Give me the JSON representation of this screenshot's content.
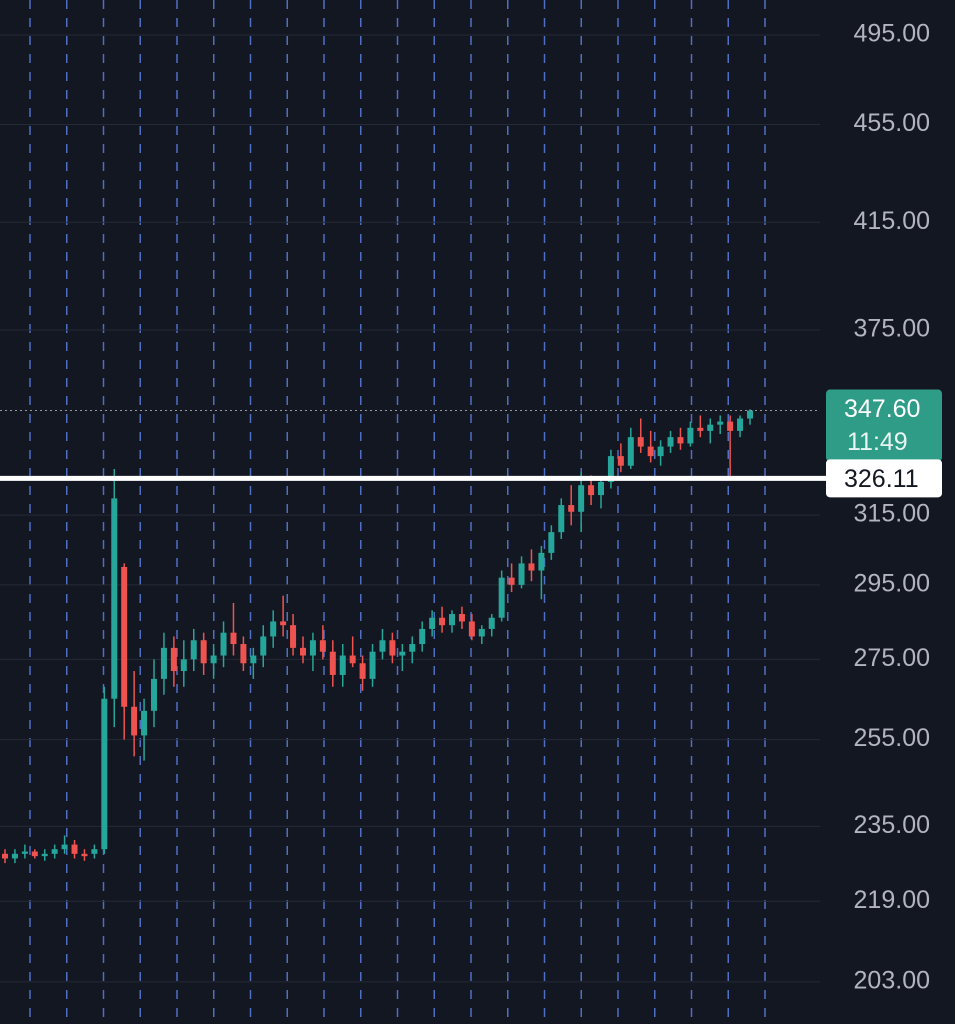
{
  "chart_data": {
    "type": "candlestick",
    "categories": [
      null,
      null,
      null,
      null,
      null,
      null,
      null,
      null,
      null,
      null,
      null,
      null,
      null,
      null,
      null,
      null,
      null,
      null,
      null,
      null,
      null,
      null,
      null,
      null,
      null,
      null,
      null,
      null,
      null,
      null,
      null,
      null,
      null,
      null,
      null,
      null,
      null,
      null,
      null,
      null,
      null,
      null,
      null,
      null,
      null,
      null,
      null,
      null,
      null,
      null,
      null,
      null,
      null,
      null,
      null,
      null,
      null,
      null,
      null,
      null,
      null,
      null,
      null,
      null,
      null,
      null,
      null,
      null,
      null,
      null,
      null,
      null,
      null,
      null,
      null,
      null
    ],
    "open": [
      229,
      228,
      229,
      229.5,
      228.5,
      229,
      230,
      231,
      229,
      229,
      230,
      265,
      300,
      263,
      256,
      262,
      270,
      278,
      272,
      275,
      280,
      274,
      276,
      282,
      279,
      274,
      276,
      281,
      285,
      284,
      278,
      276,
      280,
      277,
      271,
      276,
      274,
      270,
      277,
      280,
      276,
      277,
      279,
      283,
      286,
      284,
      287,
      285,
      281,
      283,
      286,
      297,
      295,
      301,
      299,
      304,
      310,
      318,
      316,
      324,
      321,
      325,
      333,
      330,
      339,
      336,
      333,
      336,
      339,
      337,
      342,
      341,
      343,
      344,
      341,
      345
    ],
    "high": [
      230,
      230,
      231,
      230,
      230,
      231,
      233,
      232,
      230,
      231,
      268,
      329,
      301,
      272,
      265,
      275,
      282,
      281,
      280,
      283,
      282,
      279,
      285,
      290,
      281,
      278,
      284,
      288,
      292,
      287,
      281,
      282,
      284,
      280,
      279,
      281,
      276,
      279,
      283,
      282,
      279,
      281,
      285,
      288,
      289,
      288,
      289,
      287,
      284,
      287,
      299,
      301,
      303,
      305,
      306,
      312,
      320,
      324,
      328,
      327,
      326,
      335,
      337,
      342,
      345,
      341,
      338,
      341,
      342,
      344,
      346,
      345,
      346,
      346,
      346,
      348
    ],
    "low": [
      227,
      227,
      228,
      228,
      227.5,
      228,
      229,
      228,
      227.5,
      228,
      229,
      258,
      255,
      251,
      250,
      258,
      266,
      268,
      268,
      272,
      271,
      270,
      273,
      276,
      272,
      270,
      273,
      278,
      281,
      276,
      274,
      272,
      275,
      268,
      268,
      273,
      267,
      268,
      275,
      274,
      272,
      274,
      277,
      281,
      282,
      282,
      283,
      280,
      279,
      281,
      285,
      293,
      294,
      296,
      291,
      302,
      308,
      312,
      310,
      318,
      317,
      323,
      328,
      329,
      334,
      331,
      330,
      334,
      335,
      336,
      339,
      337,
      340,
      326,
      339,
      343
    ],
    "close": [
      228,
      229,
      229.5,
      228.5,
      229,
      230,
      231,
      229,
      228.5,
      230,
      265,
      320,
      263,
      256,
      262,
      270,
      278,
      272,
      275,
      280,
      274,
      276,
      282,
      279,
      274,
      276,
      281,
      285,
      284,
      278,
      276,
      280,
      277,
      271,
      276,
      274,
      270,
      277,
      280,
      276,
      277,
      279,
      283,
      286,
      284,
      287,
      285,
      281,
      283,
      286,
      297,
      295,
      301,
      299,
      304,
      310,
      318,
      316,
      324,
      321,
      325,
      333,
      330,
      339,
      336,
      333,
      336,
      339,
      337,
      342,
      341,
      343,
      344,
      341,
      345,
      347.6
    ],
    "up_color": "#26a69a",
    "down_color": "#ef5350",
    "log_scale": true,
    "grid": true,
    "ylim": [
      195.1,
      511.6
    ],
    "yticks": [
      {
        "value": 203,
        "label": "203.00"
      },
      {
        "value": 219,
        "label": "219.00"
      },
      {
        "value": 235,
        "label": "235.00"
      },
      {
        "value": 255,
        "label": "255.00"
      },
      {
        "value": 275,
        "label": "275.00"
      },
      {
        "value": 295,
        "label": "295.00"
      },
      {
        "value": 315,
        "label": "315.00"
      },
      {
        "value": 375,
        "label": "375.00"
      },
      {
        "value": 415,
        "label": "415.00"
      },
      {
        "value": 455,
        "label": "455.00"
      },
      {
        "value": 495,
        "label": "495.00"
      }
    ],
    "last_price": {
      "value": 347.6,
      "label": "347.60"
    },
    "countdown": "11:49",
    "level_line": {
      "value": 326.11,
      "label": "326.11"
    }
  }
}
